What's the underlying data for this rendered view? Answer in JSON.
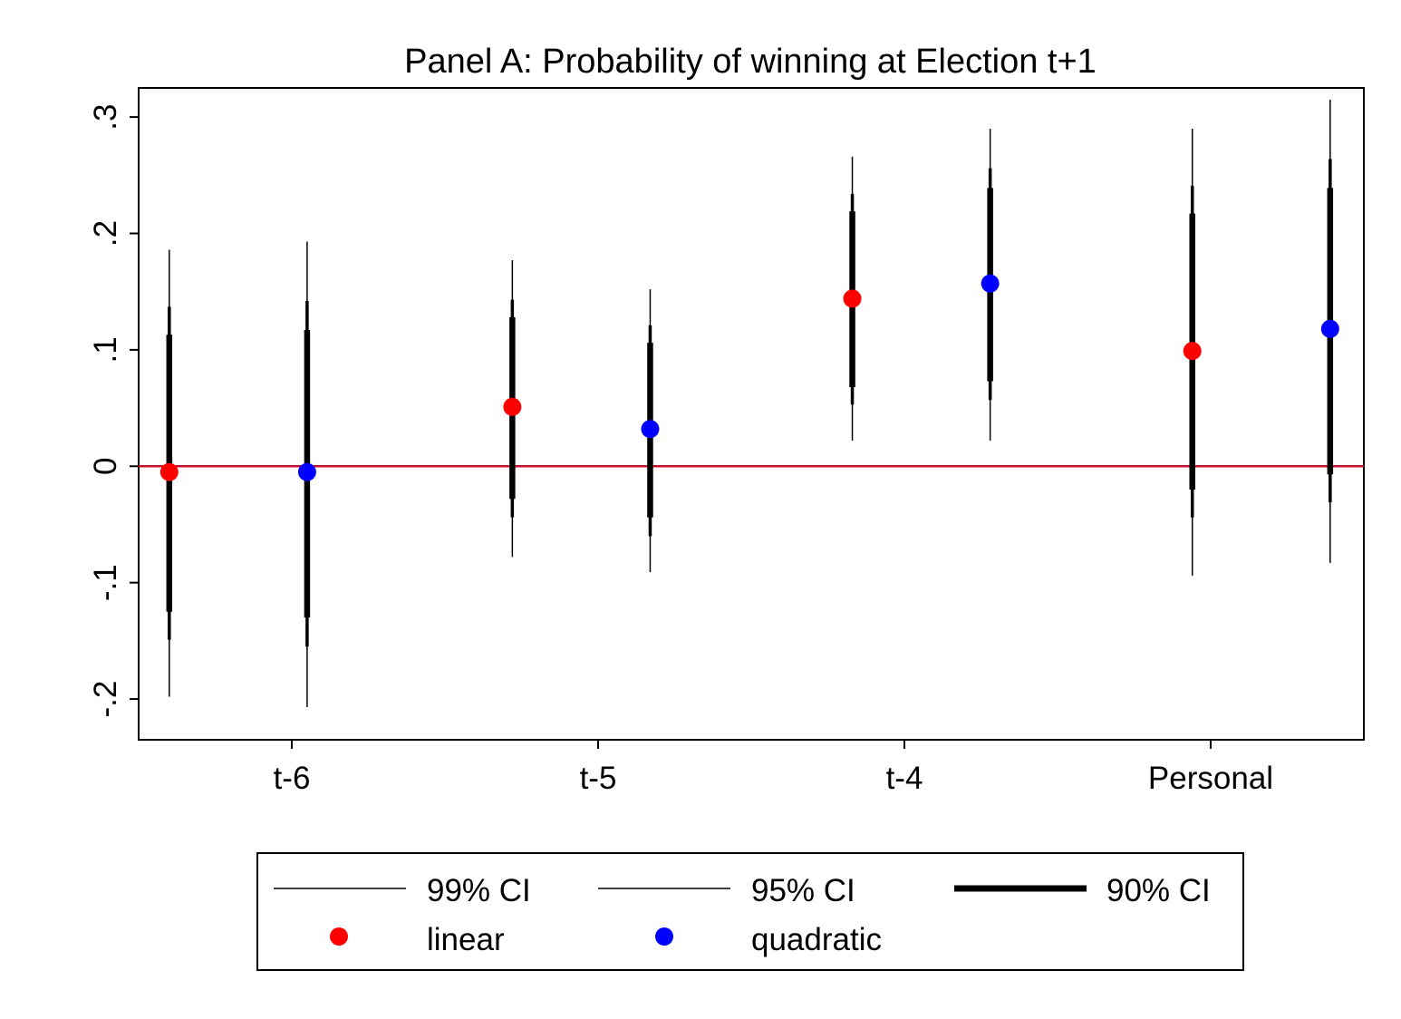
{
  "chart_data": {
    "type": "scatter",
    "title": "Panel A: Probability of winning at Election t+1",
    "xlabel": "",
    "ylabel": "",
    "categories": [
      "t-6",
      "t-5",
      "t-4",
      "Personal"
    ],
    "ylim": [
      -0.235,
      0.325
    ],
    "yticks": [
      {
        "value": -0.2,
        "label": "-.2"
      },
      {
        "value": -0.1,
        "label": "-.1"
      },
      {
        "value": 0,
        "label": "0"
      },
      {
        "value": 0.1,
        "label": ".1"
      },
      {
        "value": 0.2,
        "label": ".2"
      },
      {
        "value": 0.3,
        "label": ".3"
      }
    ],
    "reference_line": {
      "y": 0,
      "color": "#c8102e"
    },
    "grid": false,
    "legend_position": "bottom",
    "legend": {
      "ci99_label": "99% CI",
      "ci95_label": "95% CI",
      "ci90_label": "90% CI",
      "linear_label": "linear",
      "quadratic_label": "quadratic"
    },
    "colors": {
      "linear": "#ff0000",
      "quadratic": "#0000ff",
      "ci": "#000000"
    },
    "series": [
      {
        "key": "linear",
        "points": [
          {
            "category": "t-6",
            "offset": -0.4,
            "estimate": -0.005,
            "ci90": [
              -0.125,
              0.113
            ],
            "ci95": [
              -0.149,
              0.137
            ],
            "ci99": [
              -0.198,
              0.186
            ]
          },
          {
            "category": "t-5",
            "offset": -0.28,
            "estimate": 0.051,
            "ci90": [
              -0.028,
              0.128
            ],
            "ci95": [
              -0.044,
              0.143
            ],
            "ci99": [
              -0.078,
              0.177
            ]
          },
          {
            "category": "t-4",
            "offset": -0.17,
            "estimate": 0.144,
            "ci90": [
              0.068,
              0.219
            ],
            "ci95": [
              0.053,
              0.234
            ],
            "ci99": [
              0.022,
              0.266
            ]
          },
          {
            "category": "Personal",
            "offset": -0.06,
            "estimate": 0.099,
            "ci90": [
              -0.02,
              0.217
            ],
            "ci95": [
              -0.044,
              0.241
            ],
            "ci99": [
              -0.094,
              0.29
            ]
          }
        ]
      },
      {
        "key": "quadratic",
        "points": [
          {
            "category": "t-6",
            "offset": 0.05,
            "estimate": -0.005,
            "ci90": [
              -0.13,
              0.117
            ],
            "ci95": [
              -0.155,
              0.142
            ],
            "ci99": [
              -0.207,
              0.193
            ]
          },
          {
            "category": "t-5",
            "offset": 0.17,
            "estimate": 0.032,
            "ci90": [
              -0.044,
              0.106
            ],
            "ci95": [
              -0.06,
              0.121
            ],
            "ci99": [
              -0.091,
              0.152
            ]
          },
          {
            "category": "t-4",
            "offset": 0.28,
            "estimate": 0.157,
            "ci90": [
              0.073,
              0.239
            ],
            "ci95": [
              0.057,
              0.256
            ],
            "ci99": [
              0.022,
              0.29
            ]
          },
          {
            "category": "Personal",
            "offset": 0.39,
            "estimate": 0.118,
            "ci90": [
              -0.007,
              0.239
            ],
            "ci95": [
              -0.031,
              0.264
            ],
            "ci99": [
              -0.083,
              0.315
            ]
          }
        ]
      }
    ]
  }
}
